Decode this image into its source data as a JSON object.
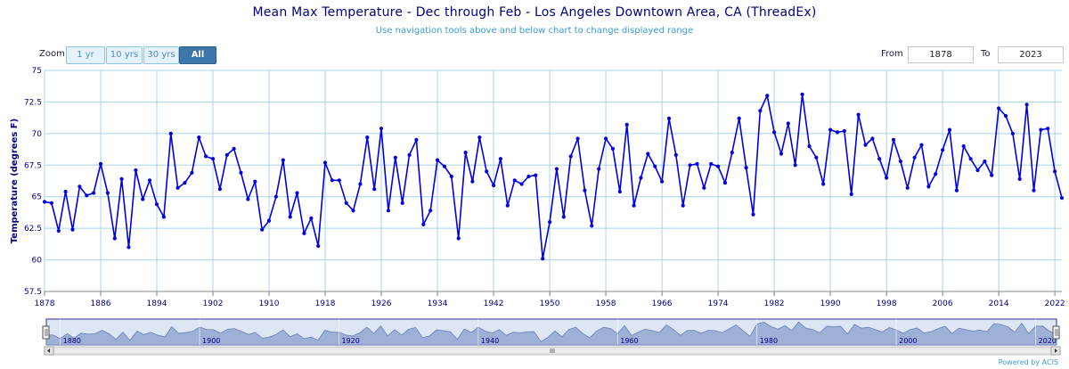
{
  "title": "Mean Max Temperature - Dec through Feb - Los Angeles Downtown Area, CA (ThreadEx)",
  "subtitle": "Use navigation tools above and below chart to change displayed range",
  "zoom": {
    "label": "Zoom",
    "buttons": [
      "1 yr",
      "10 yrs",
      "30 yrs",
      "All"
    ],
    "active": "All"
  },
  "range": {
    "from_label": "From",
    "from_value": "1878",
    "to_label": "To",
    "to_value": "2023"
  },
  "credit": "Powered by ACIS",
  "colors": {
    "series": "#0000e0",
    "axis_text": "#000080",
    "grid": "#a8d4ee",
    "navigator_fill": "#9db0d6"
  },
  "chart_data": {
    "type": "line",
    "ylabel": "Temperature (degrees F)",
    "xlabel": "",
    "ylim": [
      57.5,
      75
    ],
    "xlim": [
      1878,
      2023
    ],
    "y_ticks": [
      "57.5",
      "60",
      "62.5",
      "65",
      "67.5",
      "70",
      "72.5",
      "75"
    ],
    "x_ticks": [
      "1878",
      "1886",
      "1894",
      "1902",
      "1910",
      "1918",
      "1926",
      "1934",
      "1942",
      "1950",
      "1958",
      "1966",
      "1974",
      "1982",
      "1990",
      "1998",
      "2006",
      "2014",
      "2022"
    ],
    "navigator_ticks": [
      "1880",
      "1900",
      "1920",
      "1940",
      "1960",
      "1980",
      "2000",
      "2020"
    ],
    "grid": true,
    "series": [
      {
        "x": [
          1878,
          1879,
          1880,
          1881,
          1882,
          1883,
          1884,
          1885,
          1886,
          1887,
          1888,
          1889,
          1890,
          1891,
          1892,
          1893,
          1894,
          1895,
          1896,
          1897,
          1898,
          1899,
          1900,
          1901,
          1902,
          1903,
          1904,
          1905,
          1906,
          1907,
          1908,
          1909,
          1910,
          1911,
          1912,
          1913,
          1914,
          1915,
          1916,
          1917,
          1918,
          1919,
          1920,
          1921,
          1922,
          1923,
          1924,
          1925,
          1926,
          1927,
          1928,
          1929,
          1930,
          1931,
          1932,
          1933,
          1934,
          1935,
          1936,
          1937,
          1938,
          1939,
          1940,
          1941,
          1942,
          1943,
          1944,
          1945,
          1946,
          1947,
          1948,
          1949,
          1950,
          1951,
          1952,
          1953,
          1954,
          1955,
          1956,
          1957,
          1958,
          1959,
          1960,
          1961,
          1962,
          1963,
          1964,
          1965,
          1966,
          1967,
          1968,
          1969,
          1970,
          1971,
          1972,
          1973,
          1974,
          1975,
          1976,
          1977,
          1978,
          1979,
          1980,
          1981,
          1982,
          1983,
          1984,
          1985,
          1986,
          1987,
          1988,
          1989,
          1990,
          1991,
          1992,
          1993,
          1994,
          1995,
          1996,
          1997,
          1998,
          1999,
          2000,
          2001,
          2002,
          2003,
          2004,
          2005,
          2006,
          2007,
          2008,
          2009,
          2010,
          2011,
          2012,
          2013,
          2014,
          2015,
          2016,
          2017,
          2018,
          2019,
          2020,
          2021,
          2022,
          2023
        ],
        "values": [
          64.6,
          64.5,
          62.3,
          65.4,
          62.4,
          65.8,
          65.1,
          65.3,
          67.6,
          65.3,
          61.7,
          66.4,
          61.0,
          67.1,
          64.8,
          66.3,
          64.4,
          63.4,
          70.0,
          65.7,
          66.1,
          66.9,
          69.7,
          68.2,
          68.0,
          65.6,
          68.3,
          68.8,
          66.9,
          64.8,
          66.2,
          62.4,
          63.1,
          65.0,
          67.9,
          63.4,
          65.3,
          62.1,
          63.3,
          61.1,
          67.7,
          66.3,
          66.3,
          64.5,
          63.9,
          66.0,
          69.7,
          65.6,
          70.4,
          63.9,
          68.1,
          64.5,
          68.3,
          69.5,
          62.8,
          63.9,
          67.9,
          67.4,
          66.6,
          61.7,
          68.5,
          66.2,
          69.7,
          67.0,
          65.9,
          68.0,
          64.3,
          66.3,
          66.0,
          66.6,
          66.7,
          60.1,
          63.0,
          67.2,
          63.4,
          68.2,
          69.6,
          65.5,
          62.7,
          67.2,
          69.6,
          68.8,
          65.4,
          70.7,
          64.3,
          66.5,
          68.4,
          67.4,
          66.2,
          71.2,
          68.3,
          64.3,
          67.5,
          67.6,
          65.7,
          67.6,
          67.4,
          66.1,
          68.5,
          71.2,
          67.3,
          63.6,
          71.8,
          73.0,
          70.1,
          68.4,
          70.8,
          67.5,
          73.1,
          69.0,
          68.1,
          66.0,
          70.3,
          70.1,
          70.2,
          65.2,
          71.5,
          69.1,
          69.6,
          68.0,
          66.5,
          69.5,
          67.8,
          65.7,
          68.1,
          69.1,
          65.8,
          66.8,
          68.7,
          70.3,
          65.5,
          69.0,
          68.0,
          67.1,
          67.8,
          66.7,
          72.0,
          71.4,
          70.0,
          66.4,
          72.3,
          65.5,
          70.3,
          70.4,
          67.0,
          64.9
        ]
      }
    ]
  }
}
